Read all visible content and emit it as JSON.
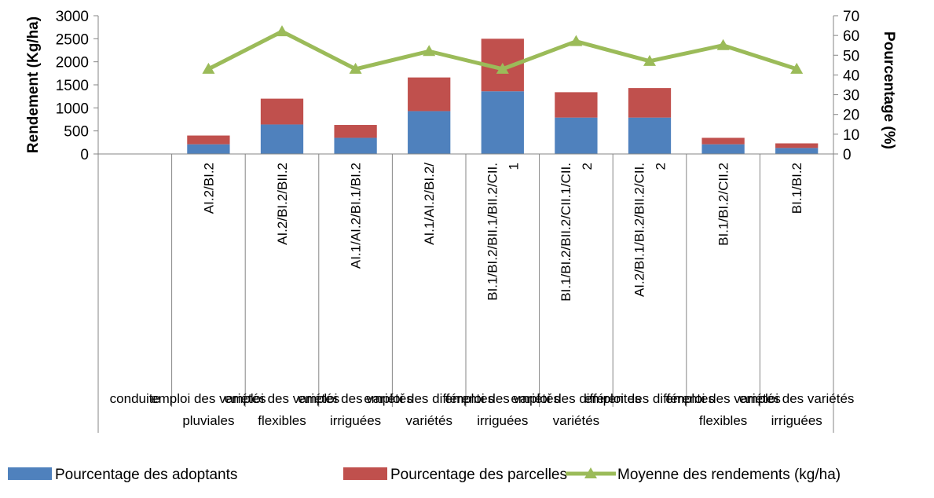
{
  "chart_data": {
    "type": "bar",
    "stacked": true,
    "categories": [
      "",
      "AI.2/BI.2",
      "AI.2/BI.2/BII.2",
      "AI.1/AI.2/BI.1/BI.2",
      "AI.1/AI.2/BI.2/",
      "BI.1/BI.2/BII.1/BII.2/CII.1",
      "BI.1/BI.2/BII.2/CII.1/CII.2",
      "AI.2/BI.1/BI.2/BII.2/CII.2",
      "BI.1/BI.2/CII.2",
      "BI.1/BI.2"
    ],
    "category_label_lines": [
      [],
      [
        "AI.2/BI.2"
      ],
      [
        "AI.2/BI.2/BII.2"
      ],
      [
        "AI.1/AI.2/BI.1/BI.2"
      ],
      [
        "AI.1/AI.2/BI.2/"
      ],
      [
        "BI.1/BI.2/BII.1/BII.2/CII.",
        "1"
      ],
      [
        "BI.1/BI.2/BII.2/CII.1/CII.",
        "2"
      ],
      [
        "AI.2/BI.1/BI.2/BII.2/CII.",
        "2"
      ],
      [
        "BI.1/BI.2/CII.2"
      ],
      [
        "BI.1/BI.2"
      ]
    ],
    "group_labels": [
      {
        "top": "conduite",
        "bottom": ""
      },
      {
        "top": "emploi des variétés",
        "bottom": "pluviales"
      },
      {
        "top": "emploi des variétés",
        "bottom": "flexibles"
      },
      {
        "top": "emploi des variétés",
        "bottom": "irriguées"
      },
      {
        "top": "emploi des différentes",
        "bottom": "variétés"
      },
      {
        "top": "emploi des variétés",
        "bottom": "irriguées"
      },
      {
        "top": "emploi des différentes",
        "bottom": "variétés"
      },
      {
        "top": "emploi des différentes",
        "bottom": ""
      },
      {
        "top": "emploi des variétés",
        "bottom": "flexibles"
      },
      {
        "top": "emploi des variétés",
        "bottom": "irriguées"
      }
    ],
    "series": [
      {
        "name": "Pourcentage des adoptants",
        "type": "bar",
        "axis": "left",
        "color": "#4F81BD",
        "values": [
          0,
          210,
          640,
          350,
          930,
          1360,
          790,
          790,
          210,
          130
        ]
      },
      {
        "name": "Pourcentage des parcelles",
        "type": "bar",
        "axis": "left",
        "color": "#C0504D",
        "values": [
          0,
          190,
          560,
          280,
          730,
          1140,
          550,
          640,
          140,
          100
        ]
      },
      {
        "name": "Moyenne des rendements (kg/ha)",
        "type": "line",
        "axis": "right",
        "color": "#9BBB59",
        "values": [
          null,
          43,
          62,
          43,
          52,
          43,
          57,
          47,
          55,
          43
        ]
      }
    ],
    "ylabel": "Rendement (Kg/ha)",
    "y2label": "Pourcentage (%)",
    "ylim": [
      0,
      3000
    ],
    "yticks": [
      0,
      500,
      1000,
      1500,
      2000,
      2500,
      3000
    ],
    "y2lim": [
      0,
      70
    ],
    "y2ticks": [
      0,
      10,
      20,
      30,
      40,
      50,
      60,
      70
    ],
    "grid": false,
    "legend_position": "bottom"
  }
}
